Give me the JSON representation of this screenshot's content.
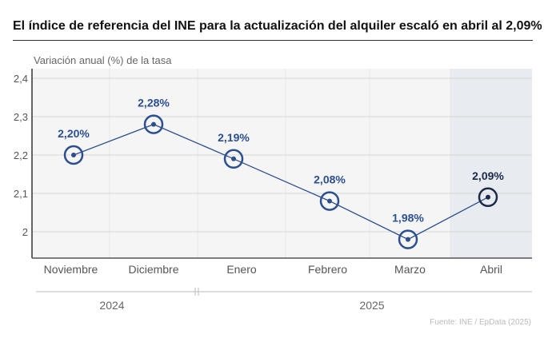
{
  "chart_data": {
    "type": "line",
    "title": "El índice de referencia del INE para la actualización del alquiler escaló en abril al 2,09%",
    "ylabel": "Variación anual (%) de la tasa",
    "xlabel": "",
    "categories": [
      "Noviembre",
      "Diciembre",
      "Enero",
      "Febrero",
      "Marzo",
      "Abril"
    ],
    "values": [
      2.2,
      2.28,
      2.19,
      2.08,
      1.98,
      2.09
    ],
    "data_labels": [
      "2,20%",
      "2,28%",
      "2,19%",
      "2,08%",
      "1,98%",
      "2,09%"
    ],
    "year_groups": [
      {
        "label": "2024",
        "categories": [
          "Noviembre",
          "Diciembre"
        ]
      },
      {
        "label": "2025",
        "categories": [
          "Enero",
          "Febrero",
          "Marzo",
          "Abril"
        ]
      }
    ],
    "yticks": [
      2,
      2.1,
      2.2,
      2.3,
      2.4
    ],
    "ytick_labels": [
      "2",
      "2,1",
      "2,2",
      "2,3",
      "2,4"
    ],
    "ylim": [
      1.93,
      2.4
    ],
    "grid": true,
    "highlighted_category": "Abril",
    "colors": {
      "line": "#2c4f8f",
      "highlight_marker": "#1b2a4a",
      "highlight_band": "#e8ebf0",
      "plot_bg": "#f5f5f5"
    }
  },
  "source": "Fuente: INE / EpData (2025)"
}
